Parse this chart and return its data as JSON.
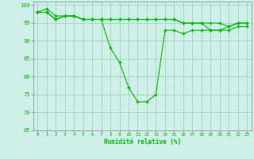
{
  "xlabel": "Humidité relative (%)",
  "background_color": "#cff0e8",
  "line_color": "#00bb00",
  "grid_color": "#99ccbb",
  "x_ticks": [
    0,
    1,
    2,
    3,
    4,
    5,
    6,
    7,
    8,
    9,
    10,
    11,
    12,
    13,
    14,
    15,
    16,
    17,
    18,
    19,
    20,
    21,
    22,
    23
  ],
  "ylim": [
    65,
    101
  ],
  "y_ticks": [
    65,
    70,
    75,
    80,
    85,
    90,
    95,
    100
  ],
  "series": [
    [
      98,
      99,
      97,
      97,
      97,
      96,
      96,
      96,
      88,
      84,
      77,
      73,
      73,
      75,
      93,
      93,
      92,
      93,
      93,
      93,
      93,
      94,
      95,
      95
    ],
    [
      98,
      98,
      96,
      97,
      97,
      96,
      96,
      96,
      96,
      96,
      96,
      96,
      96,
      96,
      96,
      96,
      95,
      95,
      95,
      95,
      95,
      94,
      95,
      95
    ],
    [
      98,
      98,
      96,
      97,
      97,
      96,
      96,
      96,
      96,
      96,
      96,
      96,
      96,
      96,
      96,
      96,
      95,
      95,
      95,
      93,
      93,
      93,
      94,
      94
    ]
  ]
}
